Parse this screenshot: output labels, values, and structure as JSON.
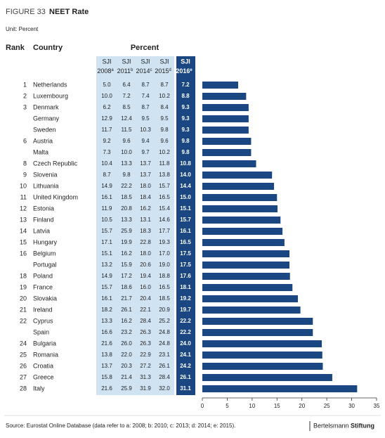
{
  "figure_label": "FIGURE 33",
  "title": "NEET Rate",
  "unit": "Unit: Percent",
  "headers": {
    "rank": "Rank",
    "country": "Country",
    "percent": "Percent"
  },
  "columns": [
    {
      "top": "SJI",
      "year": "2008",
      "note": "a"
    },
    {
      "top": "SJI",
      "year": "2011",
      "note": "b"
    },
    {
      "top": "SJI",
      "year": "2014",
      "note": "c"
    },
    {
      "top": "SJI",
      "year": "2015",
      "note": "d"
    },
    {
      "top": "SJI",
      "year": "2016",
      "note": "e"
    }
  ],
  "rows": [
    {
      "rank": 1,
      "country": "Netherlands",
      "values": [
        "5.0",
        "6.4",
        "8.7",
        "8.7"
      ]
    },
    {
      "rank": 2,
      "country": "Luxembourg",
      "values": [
        "10.0",
        "7.2",
        "7.4",
        "10.2"
      ]
    },
    {
      "rank": 3,
      "country": "Denmark",
      "values": [
        "6.2",
        "8.5",
        "8.7",
        "8.4"
      ]
    },
    {
      "rank": null,
      "country": "Germany",
      "values": [
        "12.9",
        "12.4",
        "9.5",
        "9.5"
      ]
    },
    {
      "rank": null,
      "country": "Sweden",
      "values": [
        "11.7",
        "11.5",
        "10.3",
        "9.8"
      ]
    },
    {
      "rank": 6,
      "country": "Austria",
      "values": [
        "9.2",
        "9.6",
        "9.4",
        "9.6"
      ]
    },
    {
      "rank": null,
      "country": "Malta",
      "values": [
        "7.3",
        "10.0",
        "9.7",
        "10.2"
      ]
    },
    {
      "rank": 8,
      "country": "Czech Republic",
      "values": [
        "10.4",
        "13.3",
        "13.7",
        "11.8"
      ]
    },
    {
      "rank": 9,
      "country": "Slovenia",
      "values": [
        "8.7",
        "9.8",
        "13.7",
        "13.8"
      ]
    },
    {
      "rank": 10,
      "country": "Lithuania",
      "values": [
        "14.9",
        "22.2",
        "18.0",
        "15.7"
      ]
    },
    {
      "rank": 11,
      "country": "United Kingdom",
      "values": [
        "16.1",
        "18.5",
        "18.4",
        "16.5"
      ]
    },
    {
      "rank": 12,
      "country": "Estonia",
      "values": [
        "11.9",
        "20.8",
        "16.2",
        "15.4"
      ]
    },
    {
      "rank": 13,
      "country": "Finland",
      "values": [
        "10.5",
        "13.3",
        "13.1",
        "14.6"
      ]
    },
    {
      "rank": 14,
      "country": "Latvia",
      "values": [
        "15.7",
        "25.9",
        "18.3",
        "17.7"
      ]
    },
    {
      "rank": 15,
      "country": "Hungary",
      "values": [
        "17.1",
        "19.9",
        "22.8",
        "19.3"
      ]
    },
    {
      "rank": 16,
      "country": "Belgium",
      "values": [
        "15.1",
        "16.2",
        "18.0",
        "17.0"
      ]
    },
    {
      "rank": null,
      "country": "Portugal",
      "values": [
        "13.2",
        "15.9",
        "20.6",
        "19.0"
      ]
    },
    {
      "rank": 18,
      "country": "Poland",
      "values": [
        "14.9",
        "17.2",
        "19.4",
        "18.8"
      ]
    },
    {
      "rank": 19,
      "country": "France",
      "values": [
        "15.7",
        "18.6",
        "16.0",
        "16.5"
      ]
    },
    {
      "rank": 20,
      "country": "Slovakia",
      "values": [
        "16.1",
        "21.7",
        "20.4",
        "18.5"
      ]
    },
    {
      "rank": 21,
      "country": "Ireland",
      "values": [
        "18.2",
        "26.1",
        "22.1",
        "20.9"
      ]
    },
    {
      "rank": 22,
      "country": "Cyprus",
      "values": [
        "13.3",
        "16.2",
        "28.4",
        "25.2"
      ]
    },
    {
      "rank": null,
      "country": "Spain",
      "values": [
        "16.6",
        "23.2",
        "26.3",
        "24.8"
      ]
    },
    {
      "rank": 24,
      "country": "Bulgaria",
      "values": [
        "21.6",
        "26.0",
        "26.3",
        "24.8"
      ]
    },
    {
      "rank": 25,
      "country": "Romania",
      "values": [
        "13.8",
        "22.0",
        "22.9",
        "23.1"
      ]
    },
    {
      "rank": 26,
      "country": "Croatia",
      "values": [
        "13.7",
        "20.3",
        "27.2",
        "26.1"
      ]
    },
    {
      "rank": 27,
      "country": "Greece",
      "values": [
        "15.8",
        "21.4",
        "31.3",
        "28.4"
      ]
    },
    {
      "rank": 28,
      "country": "Italy",
      "values": [
        "21.6",
        "25.9",
        "31.9",
        "32.0"
      ]
    }
  ],
  "chart_data": {
    "type": "bar",
    "orientation": "horizontal",
    "color": "#1a4781",
    "values": [
      7.2,
      8.8,
      9.3,
      9.3,
      9.3,
      9.8,
      9.8,
      10.8,
      14.0,
      14.4,
      15.0,
      15.1,
      15.7,
      16.1,
      16.5,
      17.5,
      17.5,
      17.6,
      18.1,
      19.2,
      19.7,
      22.2,
      22.2,
      24.0,
      24.1,
      24.2,
      26.1,
      31.1
    ],
    "value_labels": [
      "7.2",
      "8.8",
      "9.3",
      "9.3",
      "9.3",
      "9.8",
      "9.8",
      "10.8",
      "14.0",
      "14.4",
      "15.0",
      "15.1",
      "15.7",
      "16.1",
      "16.5",
      "17.5",
      "17.5",
      "17.6",
      "18.1",
      "19.2",
      "19.7",
      "22.2",
      "22.2",
      "24.0",
      "24.1",
      "24.2",
      "26.1",
      "31.1"
    ],
    "xlim": [
      0,
      35
    ],
    "xticks": [
      0,
      5,
      10,
      15,
      20,
      25,
      30,
      35
    ]
  },
  "source": "Source: Eurostat Online Database (data refer to a: 2008; b: 2010; c: 2013; d: 2014; e: 2015).",
  "brand": {
    "regular": "Bertelsmann",
    "bold": "Stiftung"
  }
}
